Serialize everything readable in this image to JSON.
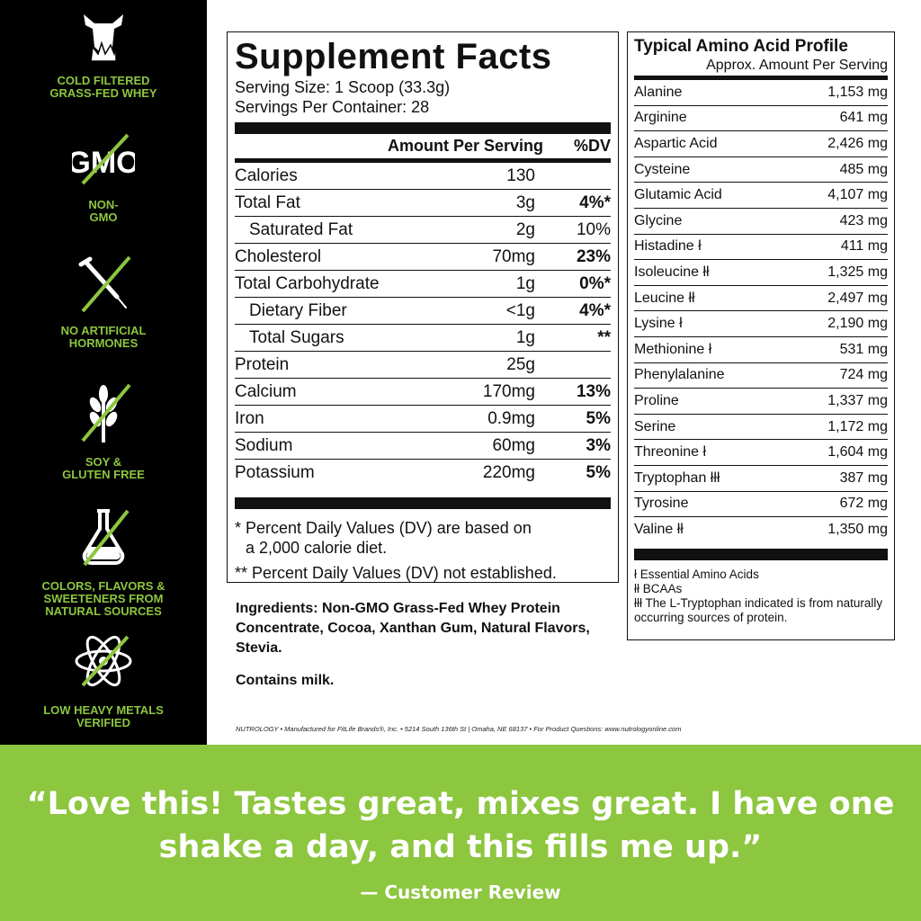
{
  "colors": {
    "accent": "#8dc63f",
    "sidebar": "#000000"
  },
  "sidebar": {
    "features": [
      {
        "icon": "cow-grass-icon",
        "label": "COLD FILTERED\nGRASS-FED WHEY"
      },
      {
        "icon": "no-gmo-icon",
        "label": "NON-\nGMO",
        "icon_text": "GMO"
      },
      {
        "icon": "no-syringe-icon",
        "label": "NO ARTIFICIAL\nHORMONES"
      },
      {
        "icon": "no-wheat-icon",
        "label": "SOY &\nGLUTEN FREE"
      },
      {
        "icon": "flask-icon",
        "label": "COLORS, FLAVORS &\nSWEETENERS FROM\nNATURAL SOURCES"
      },
      {
        "icon": "atom-icon",
        "label": "LOW HEAVY METALS\nVERIFIED"
      }
    ]
  },
  "facts": {
    "title": "Supplement Facts",
    "serving_size": "Serving Size: 1 Scoop (33.3g)",
    "servings": "Servings Per Container: 28",
    "header_amount": "Amount Per Serving",
    "header_dv": "%DV",
    "rows": [
      {
        "name": "Calories",
        "amount": "130",
        "dv": "",
        "sub": false
      },
      {
        "name": "Total Fat",
        "amount": "3g",
        "dv": "4%*",
        "sub": false
      },
      {
        "name": "Saturated Fat",
        "amount": "2g",
        "dv": "10%",
        "sub": true
      },
      {
        "name": "Cholesterol",
        "amount": "70mg",
        "dv": "23%",
        "sub": false
      },
      {
        "name": "Total Carbohydrate",
        "amount": "1g",
        "dv": "0%*",
        "sub": false
      },
      {
        "name": "Dietary Fiber",
        "amount": "<1g",
        "dv": "4%*",
        "sub": true
      },
      {
        "name": "Total Sugars",
        "amount": "1g",
        "dv": "**",
        "sub": true
      },
      {
        "name": "Protein",
        "amount": "25g",
        "dv": "",
        "sub": false
      },
      {
        "name": "Calcium",
        "amount": "170mg",
        "dv": "13%",
        "sub": false
      },
      {
        "name": "Iron",
        "amount": "0.9mg",
        "dv": "5%",
        "sub": false
      },
      {
        "name": "Sodium",
        "amount": "60mg",
        "dv": "3%",
        "sub": false
      },
      {
        "name": "Potassium",
        "amount": "220mg",
        "dv": "5%",
        "sub": false
      }
    ],
    "footnote1": "* Percent Daily Values (DV) are based on",
    "footnote1b": "a 2,000 calorie diet.",
    "footnote2": "** Percent Daily Values (DV) not established."
  },
  "ingredients": {
    "label": "Ingredients:",
    "text": " Non-GMO Grass-Fed Whey Protein Concentrate, Cocoa, Xanthan Gum, Natural Flavors, Stevia.",
    "contains": "Contains milk."
  },
  "footer": "NUTROLOGY  •  Manufactured for FitLife Brands®, Inc.  •  5214 South 136th St | Omaha, NE 68137  •  For Product Questions: www.nutrologyonline.com",
  "amino": {
    "title": "Typical Amino Acid Profile",
    "subtitle": "Approx. Amount Per Serving",
    "rows": [
      {
        "name": "Alanine",
        "amount": "1,153 mg"
      },
      {
        "name": "Arginine",
        "amount": "641 mg"
      },
      {
        "name": "Aspartic Acid",
        "amount": "2,426 mg"
      },
      {
        "name": "Cysteine",
        "amount": "485 mg"
      },
      {
        "name": "Glutamic Acid",
        "amount": "4,107 mg"
      },
      {
        "name": "Glycine",
        "amount": "423 mg"
      },
      {
        "name": "Histadine ł",
        "amount": "411 mg"
      },
      {
        "name": "Isoleucine łł",
        "amount": "1,325 mg"
      },
      {
        "name": "Leucine łł",
        "amount": "2,497 mg"
      },
      {
        "name": "Lysine ł",
        "amount": "2,190 mg"
      },
      {
        "name": "Methionine ł",
        "amount": "531 mg"
      },
      {
        "name": "Phenylalanine",
        "amount": "724 mg"
      },
      {
        "name": "Proline",
        "amount": "1,337 mg"
      },
      {
        "name": "Serine",
        "amount": "1,172 mg"
      },
      {
        "name": "Threonine ł",
        "amount": "1,604 mg"
      },
      {
        "name": "Tryptophan łłł",
        "amount": "387 mg"
      },
      {
        "name": "Tyrosine",
        "amount": "672 mg"
      },
      {
        "name": "Valine łł",
        "amount": "1,350 mg"
      }
    ],
    "notes": [
      "ł Essential Amino Acids",
      "łł BCAAs",
      "łłł The L-Tryptophan indicated is from naturally occurring sources of protein."
    ]
  },
  "review": {
    "quote": "“Love this! Tastes great, mixes great. I have one shake a day, and this fills me up.”",
    "attribution": "— Customer Review"
  }
}
